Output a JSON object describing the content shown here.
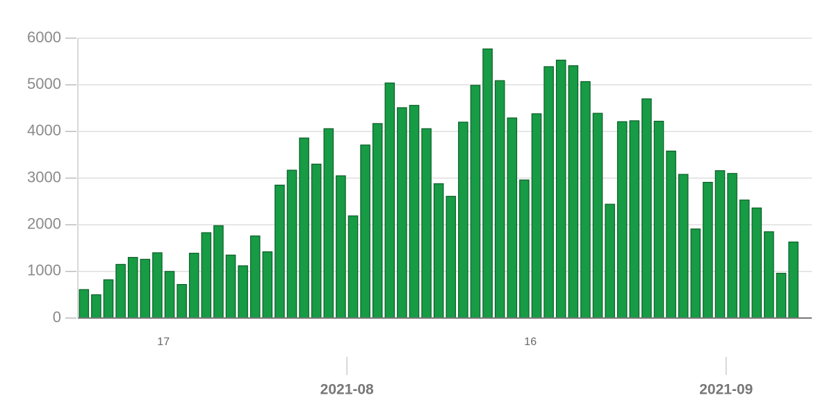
{
  "chart_data": {
    "type": "bar",
    "x_start": "2021-07-10",
    "values": [
      610,
      500,
      820,
      1150,
      1300,
      1260,
      1400,
      1000,
      720,
      1390,
      1830,
      1980,
      1350,
      1120,
      1760,
      1420,
      2850,
      3170,
      3860,
      3300,
      4060,
      3050,
      2190,
      3710,
      4170,
      5040,
      4510,
      4560,
      4060,
      2880,
      2610,
      4200,
      4990,
      5770,
      5090,
      4290,
      2960,
      4380,
      5390,
      5530,
      5410,
      5070,
      4390,
      2440,
      4210,
      4230,
      4700,
      4220,
      3580,
      3080,
      1910,
      2910,
      3160,
      3100,
      2530,
      2360,
      1850,
      960,
      1630
    ],
    "color": "#179b45",
    "xlim": [
      "2021-07-10",
      "2021-09-07"
    ],
    "xticks_minor": [
      {
        "value": "2021-07-17",
        "label": "17"
      },
      {
        "value": "2021-08-16",
        "label": "16"
      }
    ],
    "xticks_major": [
      {
        "value": "2021-08-01",
        "label": "2021-08"
      },
      {
        "value": "2021-09-01",
        "label": "2021-09"
      }
    ],
    "ylim": [
      0,
      6000
    ],
    "yticks": [
      0,
      1000,
      2000,
      3000,
      4000,
      5000,
      6000
    ],
    "grid": true
  }
}
